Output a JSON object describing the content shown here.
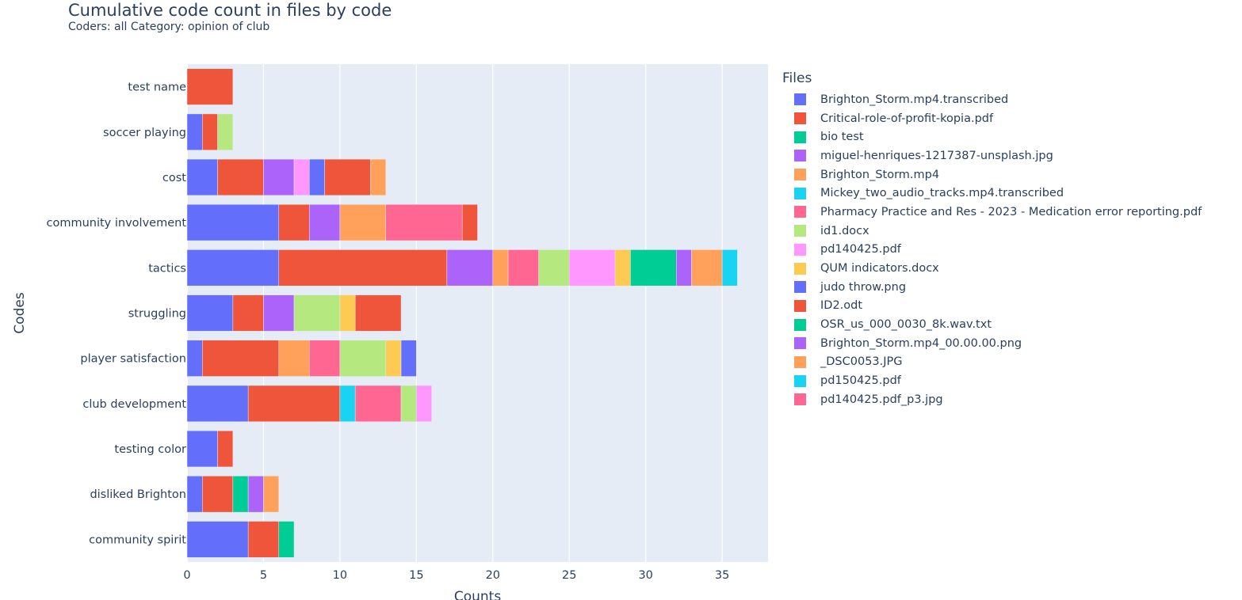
{
  "chart_data": {
    "type": "bar",
    "orientation": "horizontal",
    "barmode": "stack",
    "title": "Cumulative code count in files by code",
    "subtitle": "Coders: all Category: opinion of club",
    "xlabel": "Counts",
    "ylabel": "Codes",
    "xlim": [
      0,
      38
    ],
    "xticks": [
      0,
      5,
      10,
      15,
      20,
      25,
      30,
      35
    ],
    "grid": true,
    "legend_title": "Files",
    "legend_position": "right",
    "categories": [
      "test name",
      "soccer playing",
      "cost",
      "community involvement",
      "tactics",
      "struggling",
      "player satisfaction",
      "club development",
      "testing color",
      "disliked Brighton",
      "community spirit"
    ],
    "series": [
      {
        "name": "Brighton_Storm.mp4.transcribed",
        "color": "#636efa",
        "values": [
          0,
          1,
          2,
          6,
          6,
          3,
          1,
          4,
          2,
          1,
          4
        ]
      },
      {
        "name": "Critical-role-of-profit-kopia.pdf",
        "color": "#EF553B",
        "values": [
          3,
          1,
          3,
          2,
          11,
          2,
          5,
          6,
          1,
          2,
          2
        ]
      },
      {
        "name": "bio test",
        "color": "#00cc96",
        "values": [
          0,
          0,
          0,
          0,
          0,
          0,
          0,
          0,
          0,
          1,
          1
        ]
      },
      {
        "name": "miguel-henriques-1217387-unsplash.jpg",
        "color": "#ab63fa",
        "values": [
          0,
          0,
          2,
          2,
          3,
          2,
          0,
          0,
          0,
          1,
          0
        ]
      },
      {
        "name": "Brighton_Storm.mp4",
        "color": "#FFA15A",
        "values": [
          0,
          0,
          0,
          3,
          1,
          0,
          2,
          0,
          0,
          1,
          0
        ]
      },
      {
        "name": "Mickey_two_audio_tracks.mp4.transcribed",
        "color": "#19d3f3",
        "values": [
          0,
          0,
          0,
          0,
          0,
          0,
          0,
          1,
          0,
          0,
          0
        ]
      },
      {
        "name": "Pharmacy Practice and Res - 2023 -  Medication error reporting.pdf",
        "color": "#FF6692",
        "values": [
          0,
          0,
          0,
          5,
          2,
          0,
          2,
          3,
          0,
          0,
          0
        ]
      },
      {
        "name": "id1.docx",
        "color": "#B6E880",
        "values": [
          0,
          1,
          0,
          0,
          2,
          3,
          3,
          1,
          0,
          0,
          0
        ]
      },
      {
        "name": "pd140425.pdf",
        "color": "#FF97FF",
        "values": [
          0,
          0,
          1,
          0,
          3,
          0,
          0,
          1,
          0,
          0,
          0
        ]
      },
      {
        "name": "QUM indicators.docx",
        "color": "#FECB52",
        "values": [
          0,
          0,
          0,
          0,
          1,
          1,
          1,
          0,
          0,
          0,
          0
        ]
      },
      {
        "name": "judo throw.png",
        "color": "#636efa",
        "values": [
          0,
          0,
          1,
          0,
          0,
          0,
          1,
          0,
          0,
          0,
          0
        ]
      },
      {
        "name": "ID2.odt",
        "color": "#EF553B",
        "values": [
          0,
          0,
          3,
          1,
          0,
          3,
          0,
          0,
          0,
          0,
          0
        ]
      },
      {
        "name": "OSR_us_000_0030_8k.wav.txt",
        "color": "#00cc96",
        "values": [
          0,
          0,
          0,
          0,
          3,
          0,
          0,
          0,
          0,
          0,
          0
        ]
      },
      {
        "name": "Brighton_Storm.mp4_00.00.00.png",
        "color": "#ab63fa",
        "values": [
          0,
          0,
          0,
          0,
          1,
          0,
          0,
          0,
          0,
          0,
          0
        ]
      },
      {
        "name": "_DSC0053.JPG",
        "color": "#FFA15A",
        "values": [
          0,
          0,
          1,
          0,
          2,
          0,
          0,
          0,
          0,
          0,
          0
        ]
      },
      {
        "name": "pd150425.pdf",
        "color": "#19d3f3",
        "values": [
          0,
          0,
          0,
          0,
          1,
          0,
          0,
          0,
          0,
          0,
          0
        ]
      },
      {
        "name": "pd140425.pdf_p3.jpg",
        "color": "#FF6692",
        "values": [
          0,
          0,
          0,
          0,
          0,
          0,
          0,
          0,
          0,
          0,
          0
        ]
      }
    ]
  }
}
